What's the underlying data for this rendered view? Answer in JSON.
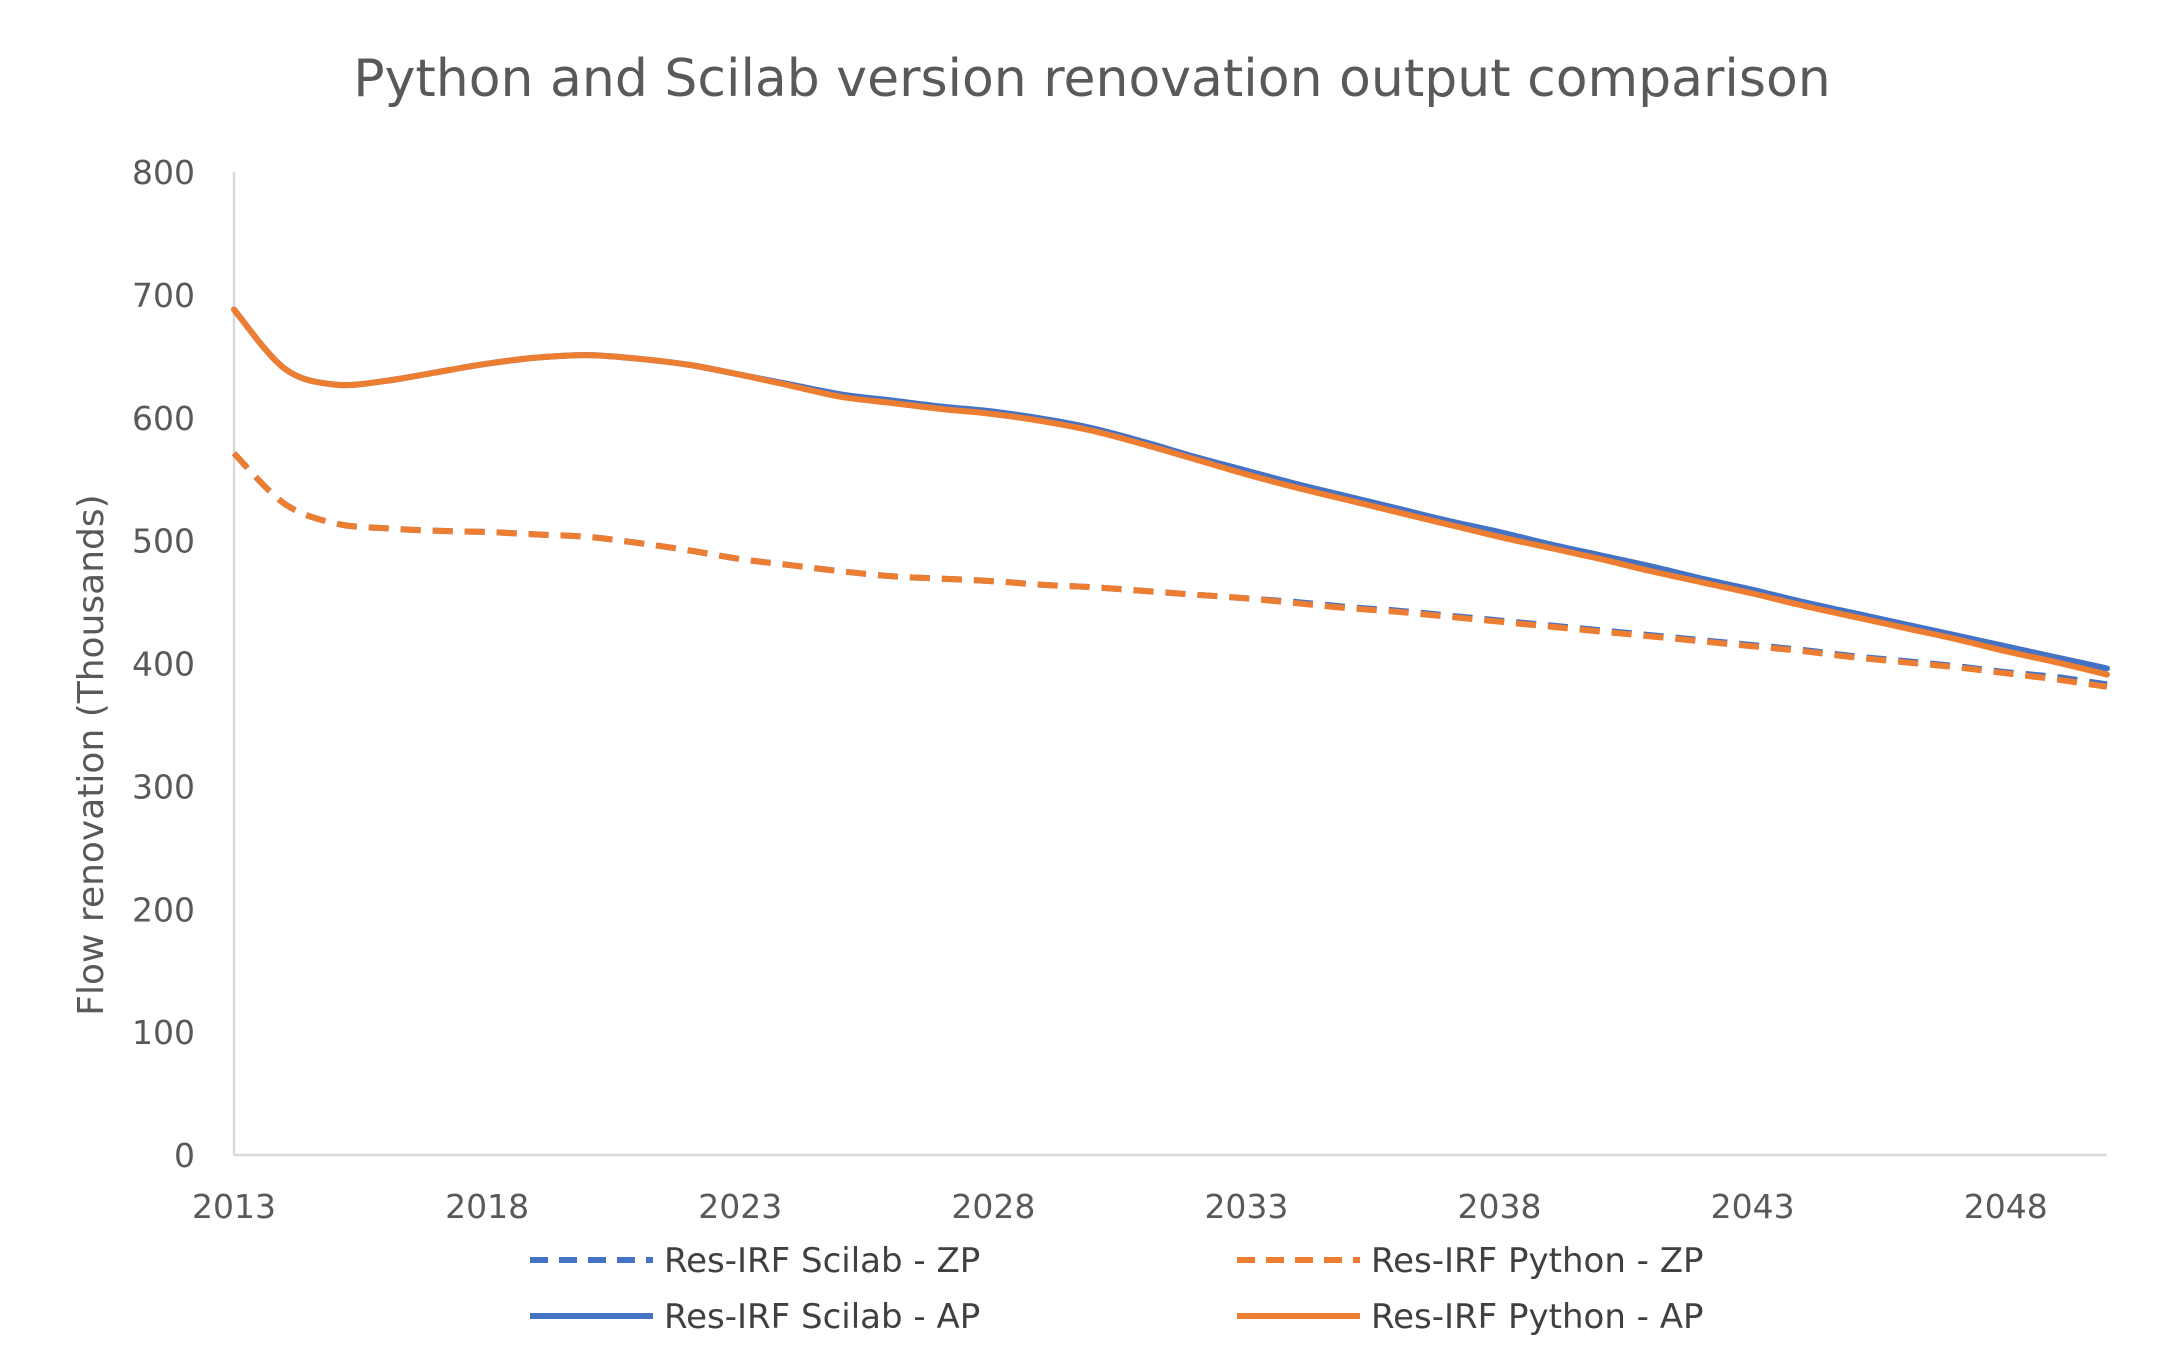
{
  "chart_data": {
    "type": "line",
    "title": "Python and Scilab version renovation output comparison",
    "xlabel": "",
    "ylabel": "Flow renovation (Thousands)",
    "xlim": [
      2013,
      2050
    ],
    "ylim": [
      0,
      800
    ],
    "x_ticks": [
      "2013",
      "2018",
      "2023",
      "2028",
      "2033",
      "2038",
      "2043",
      "2048"
    ],
    "y_ticks": [
      "0",
      "100",
      "200",
      "300",
      "400",
      "500",
      "600",
      "700",
      "800"
    ],
    "grid": false,
    "legend_position": "bottom",
    "colors": {
      "scilab": "#4472C4",
      "python": "#ED7D31",
      "axis": "#D9D9D9",
      "text": "#595959"
    },
    "x": [
      2013,
      2014,
      2015,
      2016,
      2017,
      2018,
      2019,
      2020,
      2021,
      2022,
      2023,
      2024,
      2025,
      2026,
      2027,
      2028,
      2029,
      2030,
      2031,
      2032,
      2033,
      2034,
      2035,
      2036,
      2037,
      2038,
      2039,
      2040,
      2041,
      2042,
      2043,
      2044,
      2045,
      2046,
      2047,
      2048,
      2049,
      2050
    ],
    "series": [
      {
        "name": "Res-IRF Scilab - ZP",
        "color": "#4472C4",
        "dash": true,
        "values": [
          571,
          530,
          514,
          510,
          508,
          507,
          505,
          503,
          498,
          492,
          485,
          480,
          475,
          471,
          469,
          467,
          464,
          462,
          459,
          456,
          453,
          450,
          446,
          443,
          439,
          435,
          431,
          427,
          423,
          419,
          415,
          411,
          406,
          402,
          398,
          393,
          389,
          383
        ]
      },
      {
        "name": "Res-IRF Python - ZP",
        "color": "#ED7D31",
        "dash": true,
        "values": [
          571,
          530,
          514,
          510,
          508,
          507,
          505,
          503,
          498,
          492,
          485,
          480,
          475,
          471,
          469,
          467,
          464,
          462,
          459,
          456,
          453,
          449,
          445,
          442,
          438,
          434,
          430,
          426,
          422,
          418,
          414,
          410,
          405,
          401,
          397,
          392,
          387,
          381
        ]
      },
      {
        "name": "Res-IRF Scilab - AP",
        "color": "#4472C4",
        "dash": false,
        "values": [
          688,
          640,
          627,
          630,
          637,
          644,
          649,
          651,
          648,
          643,
          635,
          627,
          619,
          614,
          609,
          605,
          599,
          591,
          580,
          568,
          557,
          546,
          536,
          526,
          516,
          507,
          497,
          488,
          479,
          469,
          460,
          450,
          441,
          432,
          423,
          414,
          405,
          396
        ]
      },
      {
        "name": "Res-IRF Python - AP",
        "color": "#ED7D31",
        "dash": false,
        "values": [
          688,
          640,
          627,
          630,
          637,
          644,
          649,
          651,
          648,
          643,
          635,
          626,
          617,
          612,
          607,
          603,
          597,
          589,
          578,
          566,
          554,
          543,
          533,
          523,
          513,
          503,
          494,
          485,
          475,
          466,
          457,
          447,
          438,
          429,
          420,
          410,
          401,
          391
        ]
      }
    ]
  }
}
